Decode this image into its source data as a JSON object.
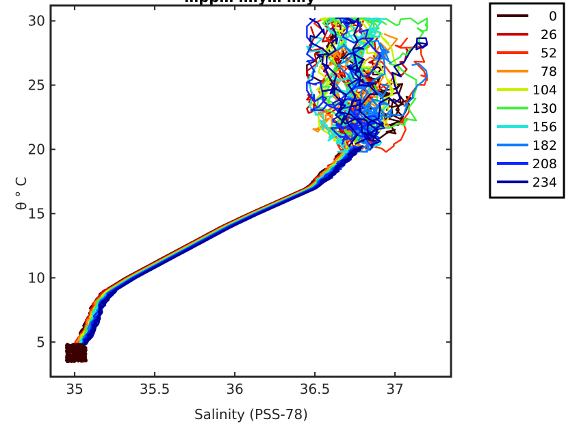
{
  "chart_data": {
    "type": "line",
    "title": "…pp… …ly… …ly",
    "xlabel": "Salinity (PSS-78)",
    "ylabel": "θ ° C",
    "xlim": [
      34.85,
      37.35
    ],
    "ylim": [
      2.3,
      31.2
    ],
    "xticks": [
      35,
      35.5,
      36,
      36.5,
      37
    ],
    "xtick_labels": [
      "35",
      "35.5",
      "36",
      "36.5",
      "37"
    ],
    "yticks": [
      5,
      10,
      15,
      20,
      25,
      30
    ],
    "ytick_labels": [
      "5",
      "10",
      "15",
      "20",
      "25",
      "30"
    ],
    "grid": false,
    "legend_position": "outside-right-top",
    "series": [
      {
        "name": "0",
        "color": "#3d0000"
      },
      {
        "name": "26",
        "color": "#cc0000"
      },
      {
        "name": "52",
        "color": "#ff2a00"
      },
      {
        "name": "78",
        "color": "#ff8c00"
      },
      {
        "name": "104",
        "color": "#c8f000"
      },
      {
        "name": "130",
        "color": "#3cf03c"
      },
      {
        "name": "156",
        "color": "#1ee6dc"
      },
      {
        "name": "182",
        "color": "#0a7cff"
      },
      {
        "name": "208",
        "color": "#0a28ff"
      },
      {
        "name": "234",
        "color": "#0000a0"
      }
    ],
    "main_curve": [
      [
        35.02,
        3.6
      ],
      [
        35.02,
        4.6
      ],
      [
        35.05,
        5.2
      ],
      [
        35.09,
        6.0
      ],
      [
        35.12,
        7.0
      ],
      [
        35.15,
        8.0
      ],
      [
        35.22,
        9.0
      ],
      [
        35.35,
        10.0
      ],
      [
        35.5,
        11.0
      ],
      [
        35.65,
        12.0
      ],
      [
        35.8,
        13.0
      ],
      [
        35.95,
        14.0
      ],
      [
        36.12,
        15.0
      ],
      [
        36.3,
        16.0
      ],
      [
        36.48,
        17.0
      ],
      [
        36.6,
        18.3
      ],
      [
        36.68,
        19.3
      ],
      [
        36.75,
        20.3
      ]
    ],
    "cloud_region": {
      "salinity": [
        36.45,
        37.2
      ],
      "theta": [
        19.8,
        30.2
      ]
    },
    "dense_black_region": {
      "salinity": [
        34.95,
        35.07
      ],
      "theta": [
        3.5,
        4.8
      ]
    }
  }
}
